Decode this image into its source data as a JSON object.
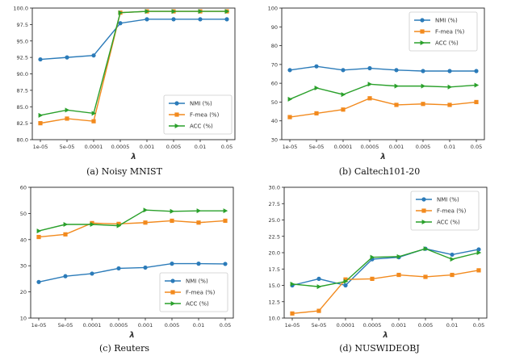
{
  "chart_data": [
    {
      "type": "line",
      "caption": "(a) Noisy MNIST",
      "xlabel": "λ",
      "categories": [
        "1e-05",
        "5e-05",
        "0.0001",
        "0.0005",
        "0.001",
        "0.005",
        "0.01",
        "0.05"
      ],
      "ylim": [
        80.0,
        100.0
      ],
      "yticks": [
        "80.0",
        "82.5",
        "85.0",
        "87.5",
        "90.0",
        "92.5",
        "95.0",
        "97.5",
        "100.0"
      ],
      "legend": "center-right",
      "series": [
        {
          "name": "NMI (%)",
          "color": "#2b7bb9",
          "marker": "circle",
          "values": [
            92.2,
            92.5,
            92.8,
            97.7,
            98.3,
            98.3,
            98.3,
            98.3
          ]
        },
        {
          "name": "F-mea (%)",
          "color": "#f28a1e",
          "marker": "square",
          "values": [
            82.5,
            83.2,
            82.8,
            99.3,
            99.5,
            99.5,
            99.5,
            99.5
          ]
        },
        {
          "name": "ACC (%)",
          "color": "#2aa02b",
          "marker": "triangle",
          "values": [
            83.7,
            84.5,
            84.0,
            99.3,
            99.5,
            99.5,
            99.5,
            99.5
          ]
        }
      ]
    },
    {
      "type": "line",
      "caption": "(b) Caltech101-20",
      "xlabel": "λ",
      "categories": [
        "1e-05",
        "5e-05",
        "0.0001",
        "0.0005",
        "0.001",
        "0.005",
        "0.01",
        "0.05"
      ],
      "ylim": [
        30,
        100
      ],
      "yticks": [
        "30",
        "40",
        "50",
        "60",
        "70",
        "80",
        "90",
        "100"
      ],
      "legend": "top-right",
      "series": [
        {
          "name": "NMI (%)",
          "color": "#2b7bb9",
          "marker": "circle",
          "values": [
            67.0,
            69.0,
            67.0,
            68.0,
            67.0,
            66.5,
            66.5,
            66.5
          ]
        },
        {
          "name": "F-mea (%)",
          "color": "#f28a1e",
          "marker": "square",
          "values": [
            42.0,
            44.0,
            46.0,
            52.0,
            48.5,
            49.0,
            48.5,
            50.0
          ]
        },
        {
          "name": "ACC (%)",
          "color": "#2aa02b",
          "marker": "triangle",
          "values": [
            51.5,
            57.5,
            54.0,
            59.5,
            58.5,
            58.5,
            58.0,
            59.0
          ]
        }
      ]
    },
    {
      "type": "line",
      "caption": "(c) Reuters",
      "xlabel": "λ",
      "categories": [
        "1e-05",
        "5e-05",
        "0.0001",
        "0.0005",
        "0.001",
        "0.005",
        "0.01",
        "0.05"
      ],
      "ylim": [
        10,
        60
      ],
      "yticks": [
        "10",
        "20",
        "30",
        "40",
        "50",
        "60"
      ],
      "legend": "bottom-right",
      "series": [
        {
          "name": "NMI (%)",
          "color": "#2b7bb9",
          "marker": "circle",
          "values": [
            23.8,
            26.0,
            27.0,
            29.0,
            29.3,
            30.8,
            30.8,
            30.7
          ]
        },
        {
          "name": "F-mea (%)",
          "color": "#f28a1e",
          "marker": "square",
          "values": [
            41.0,
            42.0,
            46.3,
            46.0,
            46.5,
            47.2,
            46.5,
            47.2
          ]
        },
        {
          "name": "ACC (%)",
          "color": "#2aa02b",
          "marker": "triangle",
          "values": [
            43.3,
            45.8,
            45.8,
            45.3,
            51.3,
            50.8,
            51.0,
            51.0
          ]
        }
      ]
    },
    {
      "type": "line",
      "caption": "(d) NUSWIDEOBJ",
      "xlabel": "λ",
      "categories": [
        "1e-05",
        "5e-05",
        "0.0001",
        "0.0005",
        "0.001",
        "0.005",
        "0.01",
        "0.05"
      ],
      "ylim": [
        10.0,
        30.0
      ],
      "yticks": [
        "10.0",
        "12.5",
        "15.0",
        "17.5",
        "20.0",
        "22.5",
        "25.0",
        "27.5",
        "30.0"
      ],
      "legend": "top-right",
      "series": [
        {
          "name": "NMI (%)",
          "color": "#2b7bb9",
          "marker": "circle",
          "values": [
            15.0,
            16.0,
            15.0,
            19.0,
            19.3,
            20.6,
            19.7,
            20.5
          ]
        },
        {
          "name": "F-mea (%)",
          "color": "#f28a1e",
          "marker": "square",
          "values": [
            10.7,
            11.1,
            15.9,
            16.0,
            16.6,
            16.3,
            16.6,
            17.3
          ]
        },
        {
          "name": "ACC (%)",
          "color": "#2aa02b",
          "marker": "triangle",
          "values": [
            15.2,
            14.8,
            15.6,
            19.3,
            19.4,
            20.6,
            19.0,
            20.0
          ]
        }
      ]
    }
  ]
}
